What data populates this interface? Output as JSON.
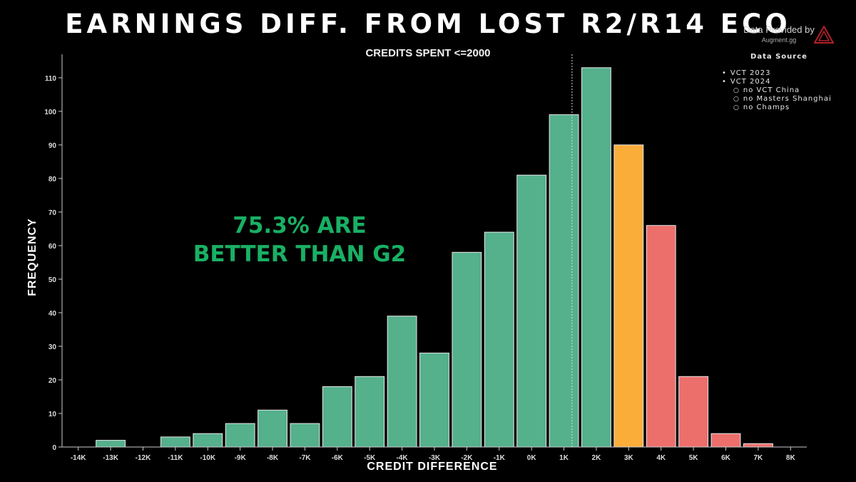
{
  "chart_data": {
    "type": "bar",
    "title": "EARNINGS DIFF. FROM LOST R2/R14 ECO",
    "subtitle": "CREDITS SPENT <=2000",
    "xlabel": "CREDIT DIFFERENCE",
    "ylabel": "FREQUENCY",
    "categories": [
      "-14K",
      "-13K",
      "-12K",
      "-11K",
      "-10K",
      "-9K",
      "-8K",
      "-7K",
      "-6K",
      "-5K",
      "-4K",
      "-3K",
      "-2K",
      "-1K",
      "0K",
      "1K",
      "2K",
      "3K",
      "4K",
      "5K",
      "6K",
      "7K",
      "8K"
    ],
    "values": [
      0,
      2,
      0,
      3,
      4,
      7,
      11,
      7,
      18,
      21,
      39,
      28,
      58,
      64,
      81,
      99,
      113,
      90,
      66,
      21,
      4,
      1,
      0
    ],
    "bar_colors": [
      "#55b08c",
      "#55b08c",
      "#55b08c",
      "#55b08c",
      "#55b08c",
      "#55b08c",
      "#55b08c",
      "#55b08c",
      "#55b08c",
      "#55b08c",
      "#55b08c",
      "#55b08c",
      "#55b08c",
      "#55b08c",
      "#55b08c",
      "#55b08c",
      "#55b08c",
      "#fbad3a",
      "#ec6f6c",
      "#ec6f6c",
      "#ec6f6c",
      "#ec6f6c",
      "#ec6f6c"
    ],
    "yticks": [
      0,
      10,
      20,
      30,
      40,
      50,
      60,
      70,
      80,
      90,
      100,
      110
    ],
    "ylim": [
      0,
      117
    ],
    "xlim": [
      -14.5,
      8.5
    ],
    "reference_line_x": 1.25,
    "grid": false,
    "annotation": "75.3% ARE BETTER THAN G2",
    "annotation_lines": [
      "75.3% ARE",
      "BETTER THAN G2"
    ],
    "annotation_color": "#19b064",
    "background": "#000000"
  },
  "provider": {
    "label": "Data Provided by",
    "site": "Augment.gg",
    "logo_icon": "augment-logo-icon",
    "logo_color": "#b3202b"
  },
  "data_source": {
    "title": "Data Source",
    "items": [
      {
        "level": 1,
        "text": "VCT 2023"
      },
      {
        "level": 1,
        "text": "VCT 2024"
      },
      {
        "level": 2,
        "text": "no VCT China"
      },
      {
        "level": 2,
        "text": "no Masters Shanghai"
      },
      {
        "level": 2,
        "text": "no Champs"
      }
    ]
  }
}
